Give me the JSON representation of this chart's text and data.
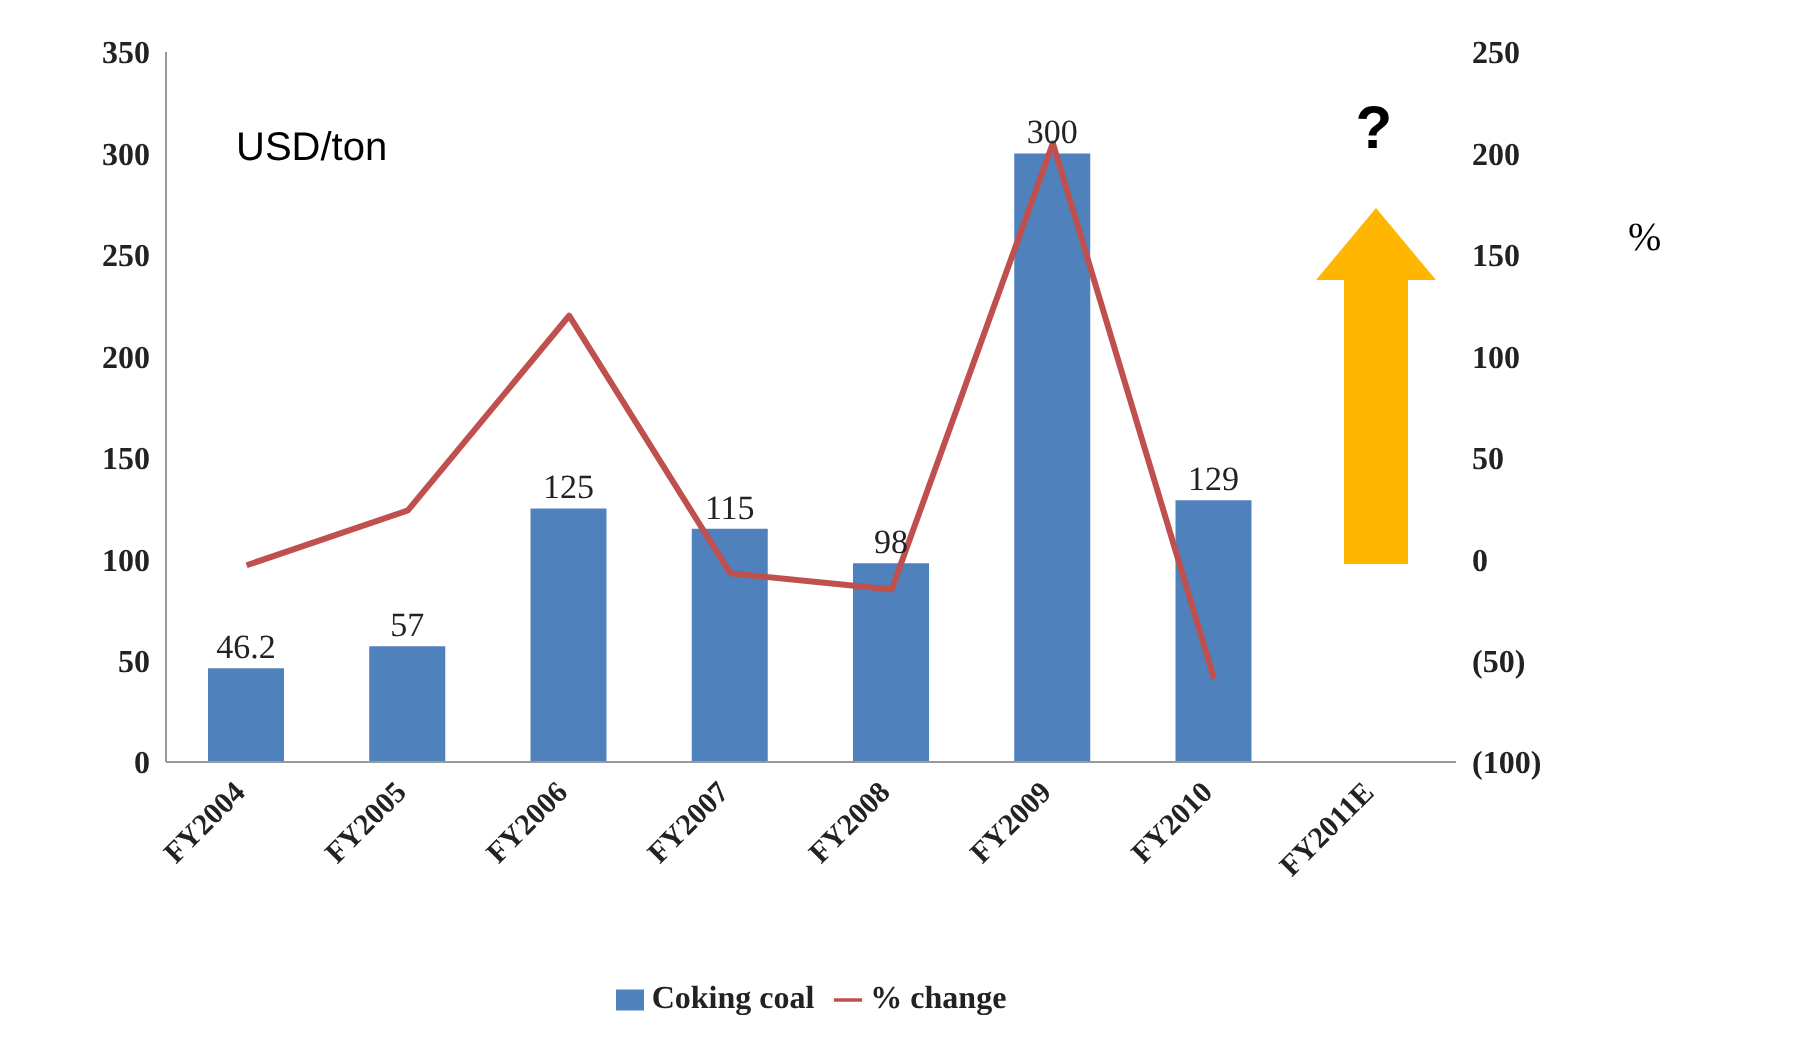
{
  "chart_data": {
    "type": "bar",
    "categories": [
      "FY2004",
      "FY2005",
      "FY2006",
      "FY2007",
      "FY2008",
      "FY2009",
      "FY2010",
      "FY2011E"
    ],
    "series": [
      {
        "name": "Coking coal",
        "color": "#4f81bd",
        "values": [
          46.2,
          57,
          125,
          115,
          98,
          300,
          129,
          null
        ],
        "value_labels": [
          "46.2",
          "57",
          "125",
          "115",
          "98",
          "300",
          "129",
          null
        ]
      },
      {
        "name": "% change",
        "type": "line",
        "axis": "y2",
        "color": "#c0504d",
        "values": [
          -3,
          24,
          120,
          -7,
          -15,
          205,
          -59,
          null
        ]
      }
    ],
    "ylim": [
      0,
      350
    ],
    "yticks": [
      0,
      50,
      100,
      150,
      200,
      250,
      300,
      350
    ],
    "y2lim": [
      -100,
      250
    ],
    "y2ticks": [
      {
        "value": -100,
        "label": "(100)"
      },
      {
        "value": -50,
        "label": "(50)"
      },
      0,
      50,
      100,
      150,
      200,
      250
    ],
    "y2label": "%",
    "annotations": [
      "USD/ton",
      "?"
    ],
    "legend": "bottom",
    "grid": false,
    "marker": "none",
    "line_style": "solid"
  }
}
